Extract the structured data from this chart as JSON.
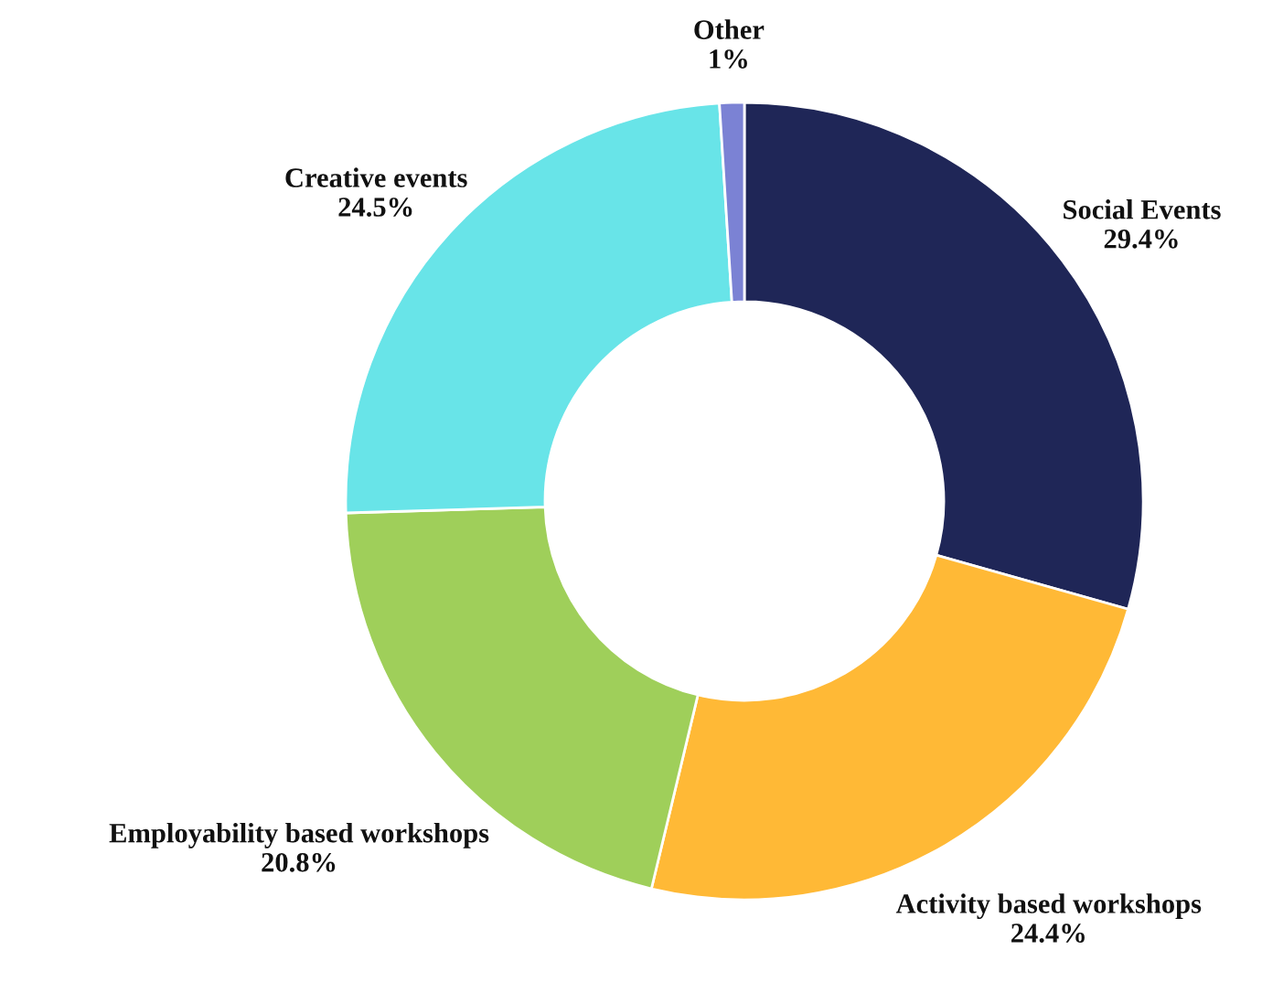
{
  "chart_data": {
    "type": "donut",
    "categories": [
      "Social Events",
      "Activity based workshops",
      "Employability based workshops",
      "Creative events",
      "Other"
    ],
    "values": [
      29.4,
      24.4,
      20.8,
      24.5,
      1
    ],
    "value_labels": [
      "29.4%",
      "24.4%",
      "20.8%",
      "24.5%",
      "1%"
    ],
    "colors": [
      "#1f2657",
      "#ffb936",
      "#9fcf5a",
      "#68e4e8",
      "#7b82d4"
    ],
    "legend": false
  }
}
